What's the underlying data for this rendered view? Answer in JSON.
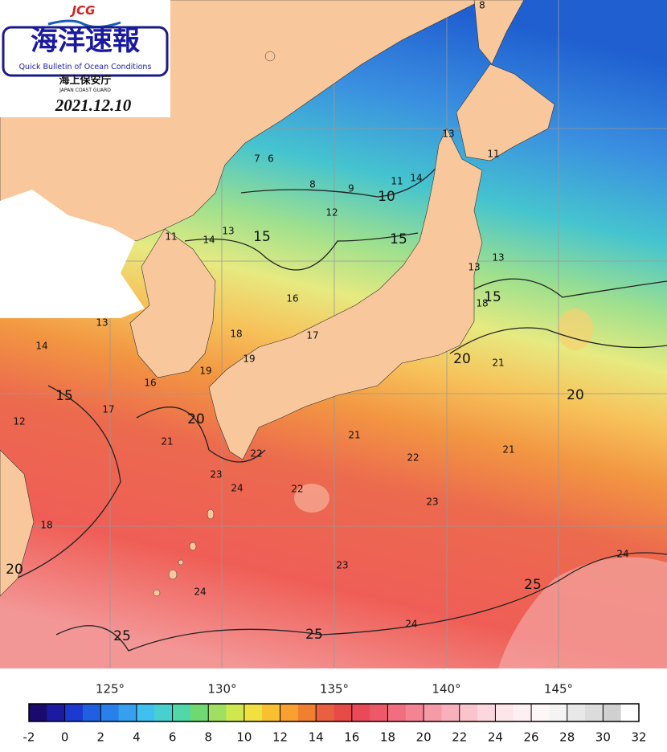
{
  "logo": {
    "agency_mark": "JCG",
    "title": "海洋速報",
    "subtitle": "Quick Bulletin of Ocean Conditions",
    "agency": "海上保安庁",
    "agency_en": "JAPAN COAST GUARD"
  },
  "date": "2021.12.10",
  "longitude_labels": [
    "125°",
    "130°",
    "135°",
    "140°",
    "145°"
  ],
  "contour_labels": [
    8,
    7,
    6,
    8,
    9,
    10,
    11,
    14,
    12,
    11,
    13,
    14,
    15,
    15,
    16,
    17,
    18,
    19,
    13,
    14,
    15,
    17,
    12,
    16,
    19,
    20,
    21,
    22,
    23,
    24,
    21,
    22,
    22,
    23,
    23,
    24,
    25,
    25,
    24,
    25,
    24,
    21,
    20,
    21,
    20,
    18,
    15,
    13,
    13,
    11,
    13,
    18,
    20
  ],
  "colorbar": {
    "lim": [
      -2,
      32
    ],
    "ticks": [
      -2,
      0,
      2,
      4,
      6,
      8,
      10,
      12,
      14,
      16,
      18,
      20,
      22,
      24,
      26,
      28,
      30,
      32
    ]
  }
}
